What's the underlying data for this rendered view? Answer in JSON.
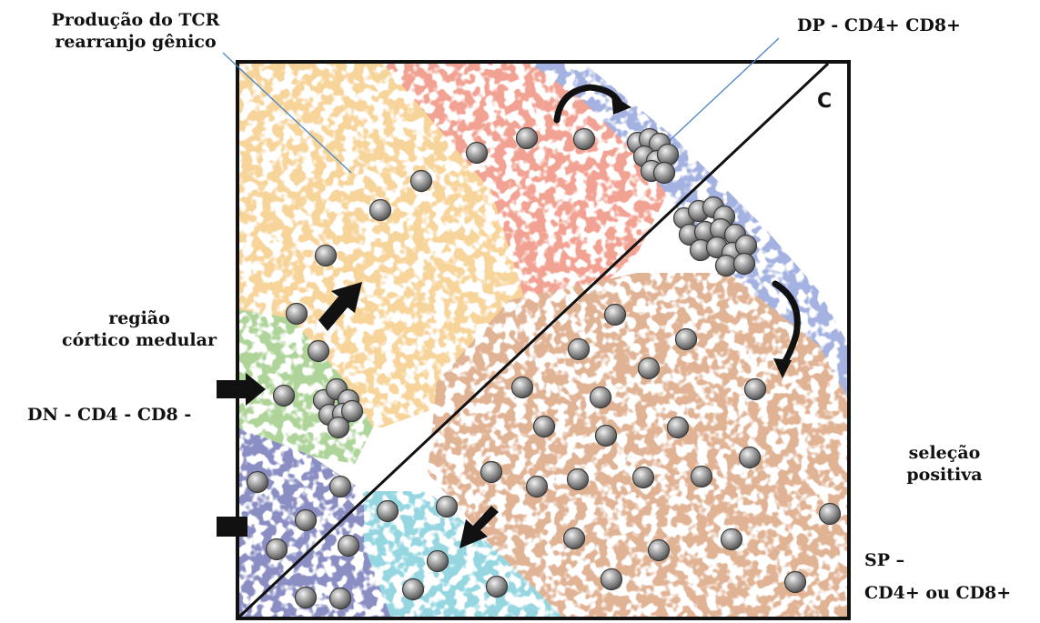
{
  "labels": {
    "tcr_line1": "Produção do TCR",
    "tcr_line2": "rearranjo gênico",
    "dp": "DP - CD4+ CD8+",
    "panel_letter": "C",
    "regiao_line1": "região",
    "regiao_line2": "córtico medular",
    "dn": "DN - CD4 - CD8 -",
    "selecao_line1": "seleção",
    "selecao_line2": "positiva",
    "sp_line1": "SP –",
    "sp_line2": "CD4+ ou CD8+"
  },
  "colors": {
    "frame": "#111111",
    "cell_fill": "#8c8c8c",
    "cell_highlight": "#e6e6e6",
    "cell_edge": "#3a3a3a",
    "zone_yellow": "#f2b24a",
    "zone_red": "#e8583a",
    "zone_blue_capsule": "#5b74c9",
    "zone_green": "#6fb34a",
    "zone_navy": "#2d3594",
    "zone_brown": "#c9763f",
    "zone_cyan": "#3fb7c9",
    "pointer_line": "#4a84c4",
    "arrow": "#111111"
  },
  "icons": [
    "thymocyte-cell-icon",
    "migration-arrow-icon",
    "curved-arrow-icon"
  ]
}
